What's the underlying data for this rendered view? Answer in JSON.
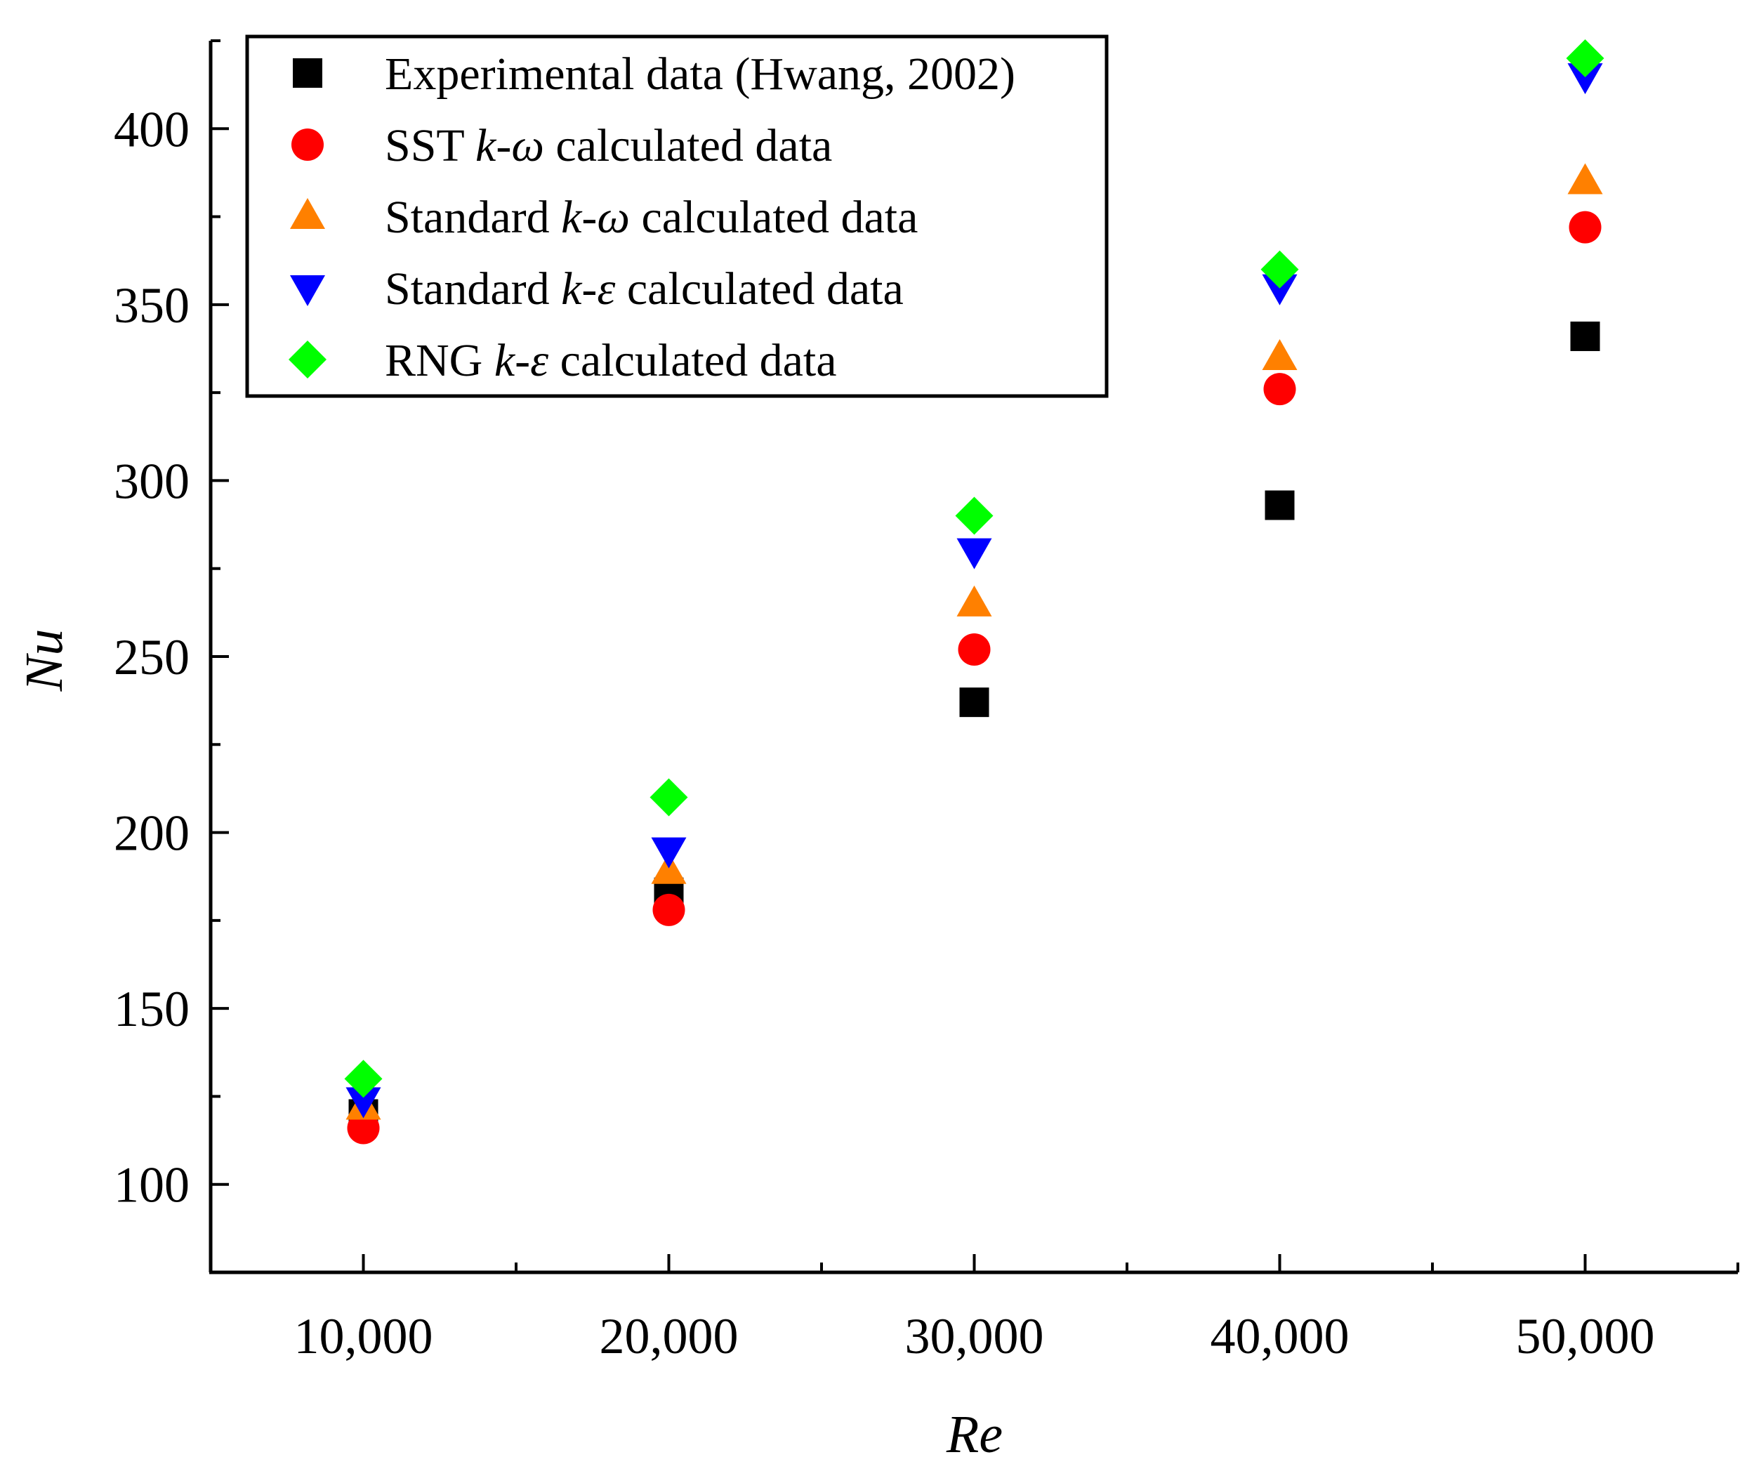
{
  "chart_data": {
    "type": "scatter",
    "title": "",
    "xlabel": "Re",
    "ylabel": "Nu",
    "xlim": [
      5000,
      55000
    ],
    "ylim": [
      75,
      425
    ],
    "grid": false,
    "legend_position": "top-left",
    "x_ticks": [
      10000,
      20000,
      30000,
      40000,
      50000
    ],
    "x_tick_labels": [
      "10,000",
      "20,000",
      "30,000",
      "40,000",
      "50,000"
    ],
    "x_minor_ticks": [
      15000,
      25000,
      35000,
      45000,
      55000
    ],
    "y_ticks": [
      100,
      150,
      200,
      250,
      300,
      350,
      400
    ],
    "y_tick_labels": [
      "100",
      "150",
      "200",
      "250",
      "300",
      "350",
      "400"
    ],
    "y_minor_ticks": [
      125,
      175,
      225,
      275,
      325,
      375,
      425
    ],
    "x": [
      10000,
      20000,
      30000,
      40000,
      50000
    ],
    "series": [
      {
        "name": "Experimental data (Hwang, 2002)",
        "marker": "square",
        "color": "#000000",
        "values": [
          120,
          183,
          237,
          293,
          341
        ]
      },
      {
        "name": "SST k-ω calculated data",
        "marker": "circle",
        "color": "#ff0000",
        "values": [
          116,
          178,
          252,
          326,
          372
        ]
      },
      {
        "name": "Standard k-ω calculated data",
        "marker": "triangle-up",
        "color": "#ff8000",
        "values": [
          122,
          189,
          265,
          335,
          385
        ]
      },
      {
        "name": "Standard k-ε calculated data",
        "marker": "triangle-down",
        "color": "#0000ff",
        "values": [
          124,
          195,
          280,
          355,
          415
        ]
      },
      {
        "name": "RNG k-ε calculated data",
        "marker": "diamond",
        "color": "#00ff00",
        "values": [
          130,
          210,
          290,
          360,
          420
        ]
      }
    ],
    "legend": [
      {
        "prefix": "Experimental data (Hwang, 2002)",
        "italic": "",
        "suffix": ""
      },
      {
        "prefix": "SST ",
        "italic": "k-ω",
        "suffix": " calculated data"
      },
      {
        "prefix": "Standard ",
        "italic": "k-ω",
        "suffix": "  calculated data"
      },
      {
        "prefix": "Standard ",
        "italic": "k-ε",
        "suffix": "  calculated data"
      },
      {
        "prefix": "RNG ",
        "italic": "k-ε",
        "suffix": " calculated data"
      }
    ]
  }
}
